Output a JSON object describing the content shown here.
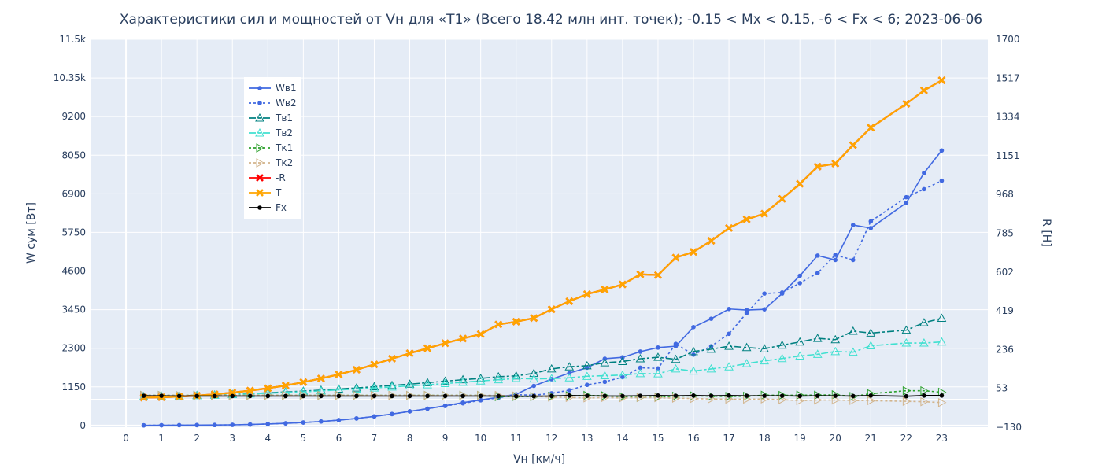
{
  "chart_data": {
    "type": "line",
    "title": "Характеристики сил и мощностей от Vн для «Т1» (Всего 18.42 млн инт. точек); -0.15 < Mx < 0.15, -6 < Fx < 6; 2023-06-06",
    "xlabel": "Vн [км/ч]",
    "ylabel_left": "W сум [Вт]",
    "ylabel_right": "R [Н]",
    "xlim": [
      -1,
      24.3
    ],
    "ylim_left": [
      -50,
      11500
    ],
    "ylim_right": [
      -130,
      1700
    ],
    "x_ticks": [
      "0",
      "1",
      "2",
      "3",
      "4",
      "5",
      "6",
      "7",
      "8",
      "9",
      "10",
      "11",
      "12",
      "13",
      "14",
      "15",
      "16",
      "17",
      "18",
      "19",
      "20",
      "21",
      "22",
      "23"
    ],
    "y_left_ticks": [
      "0",
      "1150",
      "2300",
      "3450",
      "4600",
      "5750",
      "6900",
      "8050",
      "9200",
      "10.35k",
      "11.5k"
    ],
    "y_left_tick_values": [
      0,
      1150,
      2300,
      3450,
      4600,
      5750,
      6900,
      8050,
      9200,
      10350,
      11500
    ],
    "y_right_ticks": [
      "−130",
      "53",
      "236",
      "419",
      "602",
      "785",
      "968",
      "1151",
      "1334",
      "1517",
      "1700"
    ],
    "y_right_tick_values": [
      -130,
      53,
      236,
      419,
      602,
      785,
      968,
      1151,
      1334,
      1517,
      1700
    ],
    "grid": true,
    "legend_position": "top-left",
    "series": [
      {
        "name": "Wв1",
        "axis": "left",
        "color": "#4169e1",
        "dash": "solid",
        "marker": "dot",
        "x": [
          0.5,
          1,
          1.5,
          2,
          2.5,
          3,
          3.5,
          4,
          4.5,
          5,
          5.5,
          6,
          6.5,
          7,
          7.5,
          8,
          8.5,
          9,
          9.5,
          10,
          10.5,
          11,
          11.5,
          12,
          12.5,
          13,
          13.5,
          14,
          14.5,
          15,
          15.5,
          16,
          16.5,
          17,
          17.5,
          18,
          18.5,
          19,
          19.5,
          20,
          20.5,
          21,
          22,
          22.5,
          23
        ],
        "values": [
          5,
          8,
          10,
          12,
          15,
          20,
          30,
          45,
          65,
          90,
          120,
          160,
          210,
          270,
          340,
          420,
          500,
          590,
          680,
          760,
          840,
          930,
          1180,
          1380,
          1560,
          1720,
          1990,
          2030,
          2200,
          2320,
          2360,
          2930,
          3180,
          3470,
          3440,
          3460,
          3930,
          4460,
          5060,
          4930,
          5970,
          5880,
          6630,
          7520,
          8190
        ]
      },
      {
        "name": "Wв2",
        "axis": "left",
        "color": "#4169e1",
        "dash": "dot",
        "marker": "dot",
        "x": [
          0.5,
          1,
          1.5,
          2,
          2.5,
          3,
          3.5,
          4,
          4.5,
          5,
          5.5,
          6,
          6.5,
          7,
          7.5,
          8,
          8.5,
          9,
          9.5,
          10,
          10.5,
          11,
          11.5,
          12,
          12.5,
          13,
          13.5,
          14,
          14.5,
          15,
          15.5,
          16,
          16.5,
          17,
          17.5,
          18,
          18.5,
          19,
          19.5,
          20,
          20.5,
          21,
          22,
          22.5,
          23
        ],
        "values": [
          5,
          8,
          10,
          12,
          15,
          20,
          30,
          45,
          65,
          90,
          120,
          160,
          210,
          270,
          340,
          420,
          500,
          580,
          660,
          750,
          820,
          920,
          900,
          960,
          1050,
          1210,
          1300,
          1440,
          1720,
          1700,
          2430,
          2110,
          2360,
          2730,
          3350,
          3930,
          3960,
          4240,
          4540,
          5080,
          4930,
          6080,
          6800,
          7040,
          7290
        ]
      },
      {
        "name": "Тв1",
        "axis": "right",
        "color": "#008080",
        "dash": "dashdot",
        "marker": "triangle-up-open",
        "x": [
          0.5,
          1,
          1.5,
          2,
          2.5,
          3,
          3.5,
          4,
          4.5,
          5,
          5.5,
          6,
          6.5,
          7,
          7.5,
          8,
          8.5,
          9,
          9.5,
          10,
          10.5,
          11,
          11.5,
          12,
          12.5,
          13,
          13.5,
          14,
          14.5,
          15,
          15.5,
          16,
          16.5,
          17,
          17.5,
          18,
          18.5,
          19,
          19.5,
          20,
          20.5,
          21,
          22,
          22.5,
          23
        ],
        "values": [
          14,
          16,
          18,
          20,
          22,
          25,
          28,
          32,
          36,
          40,
          45,
          50,
          55,
          61,
          67,
          73,
          80,
          87,
          94,
          100,
          108,
          112,
          124,
          145,
          155,
          160,
          174,
          180,
          193,
          200,
          190,
          227,
          238,
          252,
          246,
          240,
          257,
          272,
          289,
          283,
          323,
          314,
          328,
          363,
          384
        ]
      },
      {
        "name": "Тв2",
        "axis": "right",
        "color": "#40e0d0",
        "dash": "dashdot",
        "marker": "triangle-up-open",
        "x": [
          0.5,
          1,
          1.5,
          2,
          2.5,
          3,
          3.5,
          4,
          4.5,
          5,
          5.5,
          6,
          6.5,
          7,
          7.5,
          8,
          8.5,
          9,
          9.5,
          10,
          10.5,
          11,
          11.5,
          12,
          12.5,
          13,
          13.5,
          14,
          14.5,
          15,
          15.5,
          16,
          16.5,
          17,
          17.5,
          18,
          18.5,
          19,
          19.5,
          20,
          20.5,
          21,
          22,
          22.5,
          23
        ],
        "values": [
          14,
          16,
          17,
          19,
          21,
          24,
          27,
          30,
          34,
          37,
          41,
          46,
          50,
          55,
          60,
          65,
          70,
          76,
          82,
          88,
          94,
          100,
          98,
          99,
          103,
          110,
          113,
          116,
          123,
          122,
          145,
          135,
          145,
          155,
          170,
          183,
          194,
          206,
          214,
          227,
          224,
          254,
          267,
          267,
          272
        ]
      },
      {
        "name": "Tк1",
        "axis": "right",
        "color": "#2ca02c",
        "dash": "dot",
        "marker": "triangle-right-open",
        "x": [
          0.5,
          1,
          1.5,
          2,
          2.5,
          3,
          3.5,
          4,
          4.5,
          5,
          5.5,
          6,
          6.5,
          7,
          7.5,
          8,
          8.5,
          9,
          9.5,
          10,
          10.5,
          11,
          11.5,
          12,
          12.5,
          13,
          13.5,
          14,
          14.5,
          15,
          15.5,
          16,
          16.5,
          17,
          17.5,
          18,
          18.5,
          19,
          19.5,
          20,
          20.5,
          21,
          22,
          22.5,
          23
        ],
        "values": [
          20,
          20,
          20,
          20,
          20,
          20,
          20,
          20,
          20,
          20,
          20,
          20,
          20,
          20,
          20,
          20,
          20,
          20,
          20,
          20,
          14,
          15,
          14,
          16,
          18,
          20,
          18,
          14,
          10,
          12,
          16,
          18,
          16,
          15,
          16,
          21,
          20,
          21,
          21,
          23,
          15,
          28,
          42,
          42,
          35
        ]
      },
      {
        "name": "Tк2",
        "axis": "right",
        "color": "#d2b48c",
        "dash": "dot",
        "marker": "triangle-right-open",
        "x": [
          0.5,
          1,
          1.5,
          2,
          2.5,
          3,
          3.5,
          4,
          4.5,
          5,
          5.5,
          6,
          6.5,
          7,
          7.5,
          8,
          8.5,
          9,
          9.5,
          10,
          10.5,
          11,
          11.5,
          12,
          12.5,
          13,
          13.5,
          14,
          14.5,
          15,
          15.5,
          16,
          16.5,
          17,
          17.5,
          18,
          18.5,
          19,
          19.5,
          20,
          20.5,
          21,
          22,
          22.5,
          23
        ],
        "values": [
          20,
          20,
          20,
          20,
          20,
          20,
          20,
          20,
          20,
          20,
          20,
          20,
          20,
          20,
          20,
          20,
          20,
          20,
          20,
          20,
          20,
          17,
          15,
          12,
          10,
          8,
          10,
          8,
          10,
          9,
          7,
          5,
          3,
          2,
          2,
          3,
          0,
          -5,
          -2,
          -2,
          -4,
          -5,
          -8,
          -10,
          -14
        ]
      },
      {
        "name": "-R",
        "axis": "left",
        "color": "#ff0000",
        "dash": "solid",
        "marker": "x",
        "x": [
          0.5,
          1,
          1.5,
          2,
          2.5,
          3,
          3.5,
          4,
          4.5,
          5,
          5.5,
          6,
          6.5,
          7,
          7.5,
          8,
          8.5,
          9,
          9.5,
          10,
          10.5,
          11,
          11.5,
          12,
          12.5,
          13,
          13.5,
          14,
          14.5,
          15,
          15.5,
          16,
          16.5,
          17,
          17.5,
          18,
          18.5,
          19,
          19.5,
          20,
          20.5,
          21,
          22,
          22.5,
          23
        ],
        "values": [
          830,
          840,
          860,
          890,
          930,
          980,
          1040,
          1110,
          1190,
          1290,
          1400,
          1520,
          1660,
          1820,
          1990,
          2150,
          2300,
          2450,
          2590,
          2720,
          3010,
          3090,
          3200,
          3460,
          3700,
          3910,
          4050,
          4200,
          4500,
          4480,
          5000,
          5170,
          5500,
          5880,
          6140,
          6310,
          6750,
          7200,
          7710,
          7800,
          8350,
          8870,
          9580,
          9980,
          10280
        ]
      },
      {
        "name": "T",
        "axis": "left",
        "color": "#ffa500",
        "dash": "solid",
        "marker": "x",
        "x": [
          0.5,
          1,
          1.5,
          2,
          2.5,
          3,
          3.5,
          4,
          4.5,
          5,
          5.5,
          6,
          6.5,
          7,
          7.5,
          8,
          8.5,
          9,
          9.5,
          10,
          10.5,
          11,
          11.5,
          12,
          12.5,
          13,
          13.5,
          14,
          14.5,
          15,
          15.5,
          16,
          16.5,
          17,
          17.5,
          18,
          18.5,
          19,
          19.5,
          20,
          20.5,
          21,
          22,
          22.5,
          23
        ],
        "values": [
          830,
          840,
          860,
          890,
          930,
          980,
          1040,
          1110,
          1190,
          1290,
          1400,
          1520,
          1660,
          1820,
          1990,
          2150,
          2300,
          2450,
          2590,
          2720,
          3010,
          3090,
          3200,
          3460,
          3700,
          3910,
          4050,
          4200,
          4500,
          4480,
          5000,
          5170,
          5500,
          5880,
          6140,
          6310,
          6750,
          7200,
          7710,
          7800,
          8350,
          8870,
          9580,
          9980,
          10280
        ]
      },
      {
        "name": "Fx",
        "axis": "right",
        "color": "#000000",
        "dash": "solid",
        "marker": "dot",
        "x": [
          0.5,
          1,
          1.5,
          2,
          2.5,
          3,
          3.5,
          4,
          4.5,
          5,
          5.5,
          6,
          6.5,
          7,
          7.5,
          8,
          8.5,
          9,
          9.5,
          10,
          10.5,
          11,
          11.5,
          12,
          12.5,
          13,
          13.5,
          14,
          14.5,
          15,
          15.5,
          16,
          16.5,
          17,
          17.5,
          18,
          18.5,
          19,
          19.5,
          20,
          20.5,
          21,
          22,
          22.5,
          23
        ],
        "values": [
          18,
          18,
          17,
          17,
          17,
          17,
          17,
          17,
          17,
          17,
          17,
          17,
          17,
          17,
          17,
          17,
          17,
          17,
          17,
          17,
          17,
          16,
          16,
          17,
          19,
          18,
          17,
          17,
          18,
          19,
          18,
          19,
          18,
          19,
          18,
          18,
          18,
          17,
          18,
          18,
          17,
          19,
          16,
          19,
          19
        ]
      }
    ]
  }
}
